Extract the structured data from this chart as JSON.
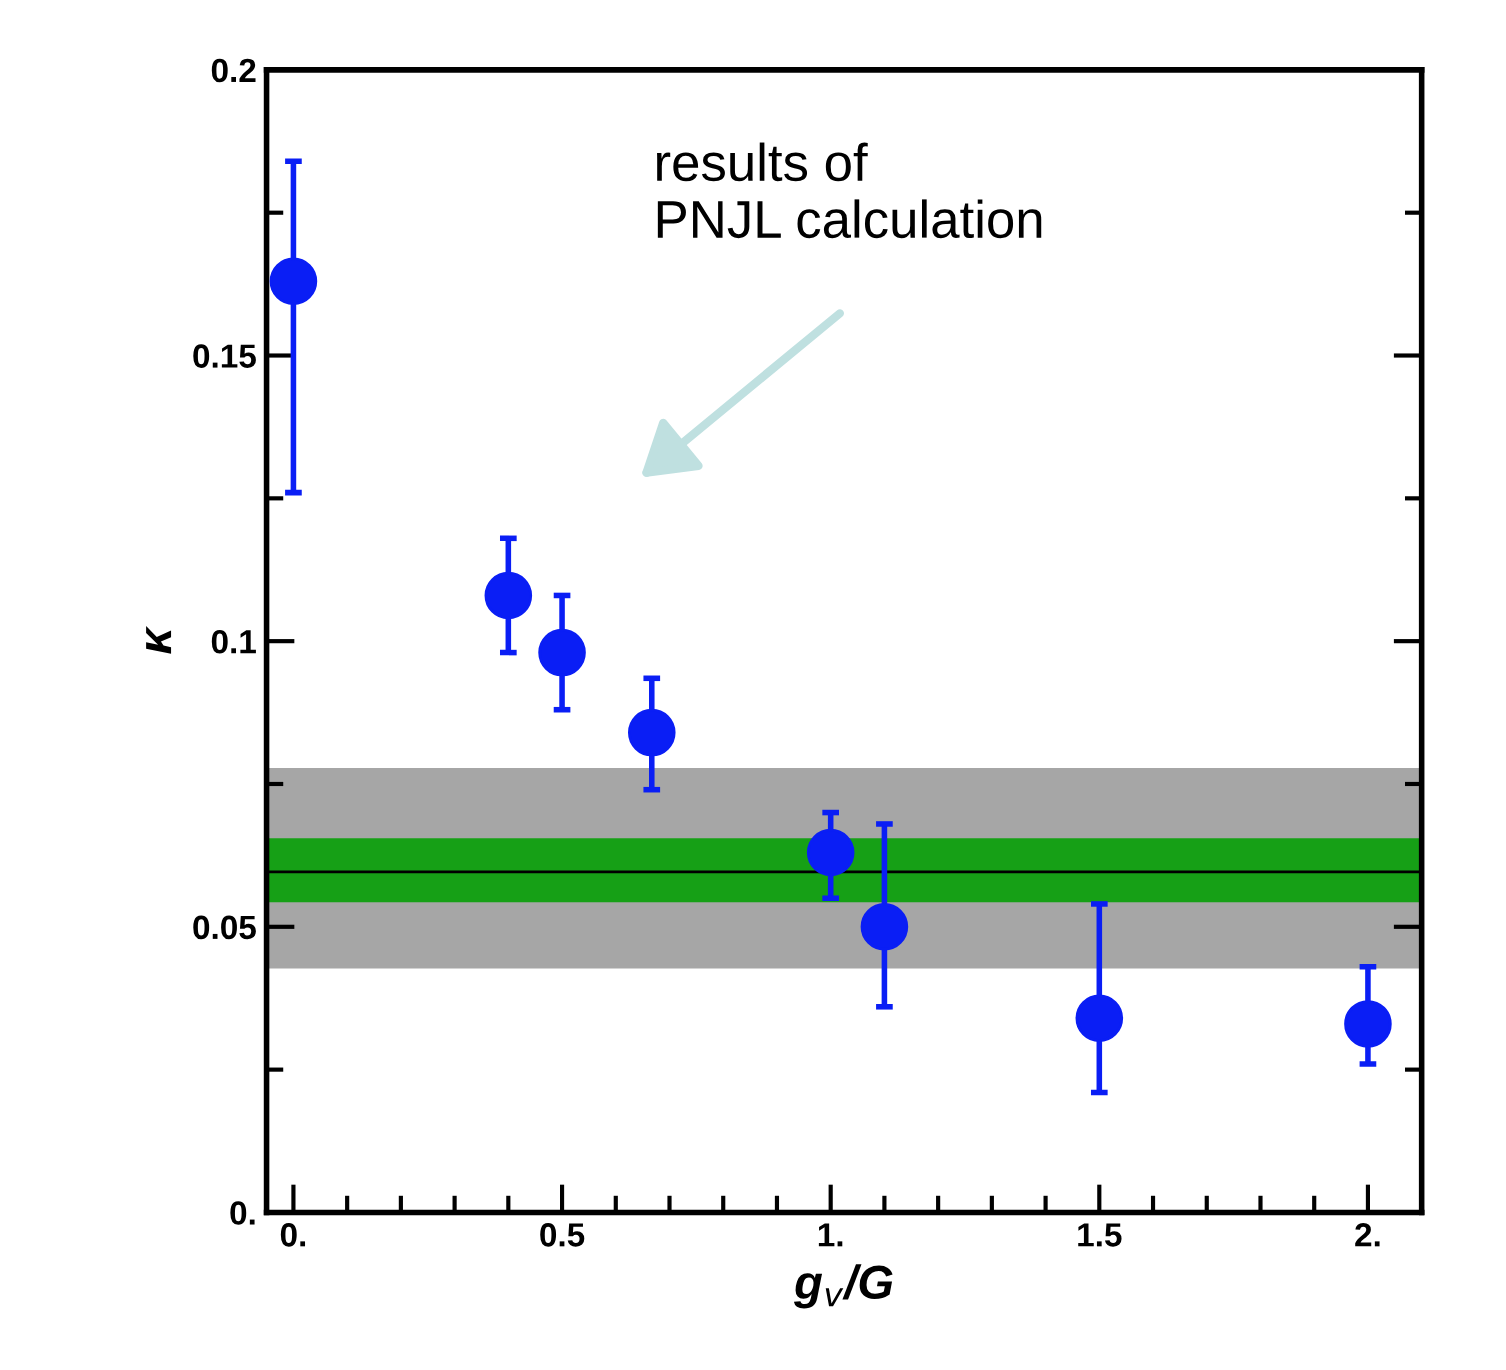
{
  "chart_data": {
    "type": "scatter",
    "xlabel": "g$_{v}$/G",
    "ylabel": "κ",
    "x": [
      0,
      0.4,
      0.5,
      0.667,
      1.0,
      1.1,
      1.5,
      2.0
    ],
    "series": [
      {
        "color": "#0a1ef5",
        "values": [
          0.163,
          0.108,
          0.098,
          0.084,
          0.063,
          0.05,
          0.034,
          0.033
        ],
        "errors": [
          [
            0.126,
            0.184
          ],
          [
            0.098,
            0.118
          ],
          [
            0.088,
            0.108
          ],
          [
            0.074,
            0.0935
          ],
          [
            0.055,
            0.07
          ],
          [
            0.036,
            0.068
          ],
          [
            0.021,
            0.054
          ],
          [
            0.026,
            0.043
          ]
        ]
      }
    ],
    "marker": "circle",
    "xlim": [
      -0.05,
      2.1
    ],
    "ylim": [
      0,
      0.2
    ],
    "xticks": [
      {
        "value": 0,
        "label": "0."
      },
      {
        "value": 0.1,
        "label": null
      },
      {
        "value": 0.2,
        "label": null
      },
      {
        "value": 0.3,
        "label": null
      },
      {
        "value": 0.4,
        "label": null
      },
      0.5,
      {
        "value": 0.6,
        "label": null
      },
      {
        "value": 0.7,
        "label": null
      },
      {
        "value": 0.8,
        "label": null
      },
      {
        "value": 0.9,
        "label": null
      },
      {
        "value": 1.0,
        "label": "1."
      },
      {
        "value": 1.1,
        "label": null
      },
      {
        "value": 1.2,
        "label": null
      },
      {
        "value": 1.3,
        "label": null
      },
      {
        "value": 1.4,
        "label": null
      },
      1.5,
      {
        "value": 1.6,
        "label": null
      },
      {
        "value": 1.7,
        "label": null
      },
      {
        "value": 1.8,
        "label": null
      },
      {
        "value": 1.9,
        "label": null
      },
      {
        "value": 2.0,
        "label": "2."
      }
    ],
    "yticks": [
      {
        "value": 0,
        "label": "0."
      },
      {
        "value": 0.025,
        "label": null
      },
      0.05,
      {
        "value": 0.075,
        "label": null
      },
      0.1,
      {
        "value": 0.125,
        "label": null
      },
      0.15,
      {
        "value": 0.175,
        "label": null
      },
      0.2
    ],
    "bands": [
      {
        "axis": "y",
        "from": 0.0427,
        "to": 0.0778,
        "color": "#a6a6a6"
      },
      {
        "axis": "y",
        "from": 0.0543,
        "to": 0.0655,
        "color": "#16a016"
      }
    ],
    "ref_lines": [
      {
        "axis": "y",
        "value": 0.0596,
        "color": "#000000",
        "line_style": "solid"
      }
    ],
    "annotations": [
      "results of\nPNJL calculation"
    ],
    "grid": false,
    "legend": false
  }
}
